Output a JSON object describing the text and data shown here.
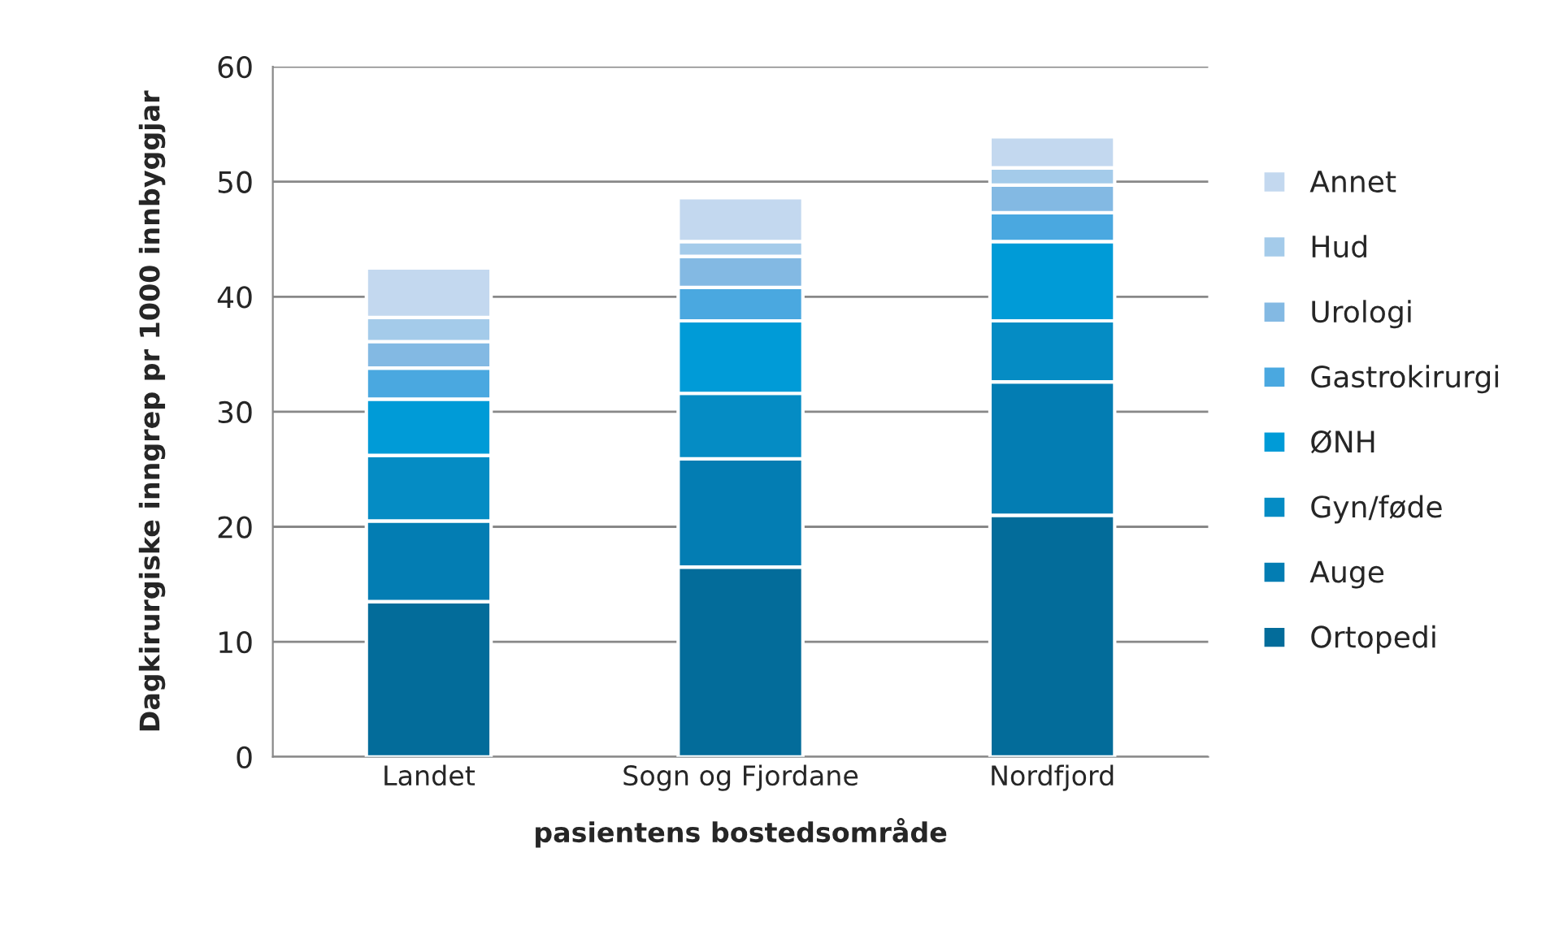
{
  "chart_data": {
    "type": "bar",
    "stacked": true,
    "xlabel": "pasientens bostedsområde",
    "ylabel": "Dagkirurgiske inngrep pr 1000 innbyggjar",
    "categories": [
      "Landet",
      "Sogn og Fjordane",
      "Nordfjord"
    ],
    "ylim": [
      0,
      60
    ],
    "yticks": [
      0,
      10,
      20,
      30,
      40,
      50,
      60
    ],
    "grid": "y",
    "legend": "right",
    "series": [
      {
        "name": "Ortopedi",
        "color": "#036c9a",
        "values": [
          13.5,
          16.5,
          21.0
        ]
      },
      {
        "name": "Auge",
        "color": "#037db3",
        "values": [
          7.0,
          9.4,
          11.6
        ]
      },
      {
        "name": "Gyn/føde",
        "color": "#058cc4",
        "values": [
          5.7,
          5.7,
          5.3
        ]
      },
      {
        "name": "ØNH",
        "color": "#009bd7",
        "values": [
          4.9,
          6.3,
          6.9
        ]
      },
      {
        "name": "Gastrokirurgi",
        "color": "#4aa8e0",
        "values": [
          2.7,
          2.9,
          2.5
        ]
      },
      {
        "name": "Urologi",
        "color": "#83b9e3",
        "values": [
          2.3,
          2.7,
          2.4
        ]
      },
      {
        "name": "Hud",
        "color": "#a4cbea",
        "values": [
          2.1,
          1.3,
          1.5
        ]
      },
      {
        "name": "Annet",
        "color": "#c3d8ef",
        "values": [
          4.3,
          3.8,
          2.7
        ]
      }
    ]
  }
}
